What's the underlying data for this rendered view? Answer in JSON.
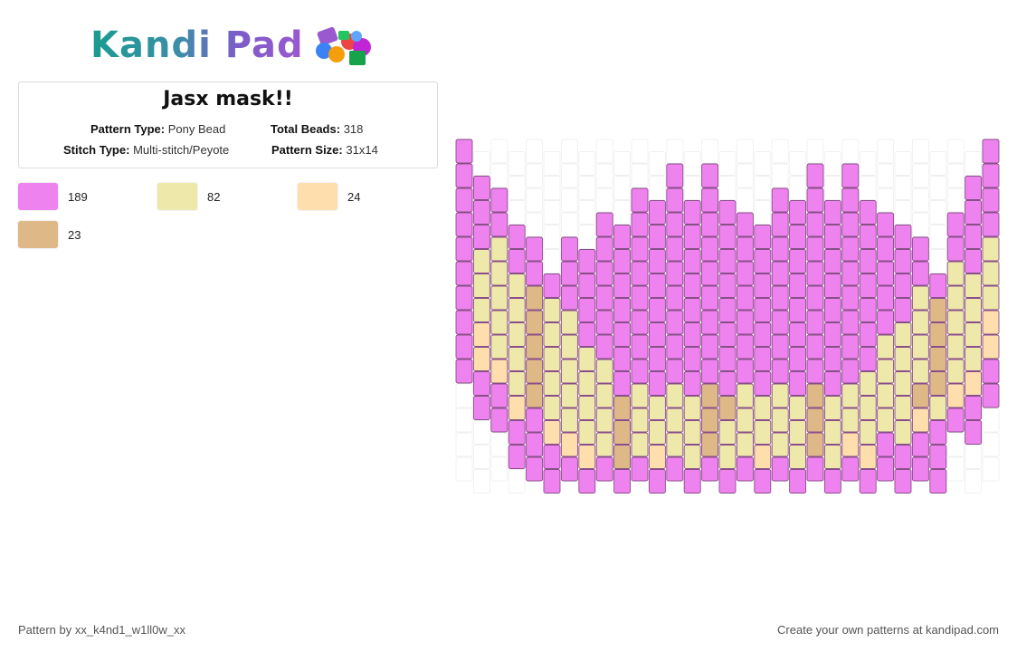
{
  "brand": {
    "name": "Kandi Pad",
    "gradient": [
      "#1a9b8f",
      "#9b59d0"
    ]
  },
  "pattern": {
    "title": "Jasx mask!!",
    "fields": {
      "pattern_type_label": "Pattern Type:",
      "pattern_type": "Pony Bead",
      "total_beads_label": "Total Beads:",
      "total_beads": "318",
      "stitch_type_label": "Stitch Type:",
      "stitch_type": "Multi-stitch/Peyote",
      "pattern_size_label": "Pattern Size:",
      "pattern_size": "31x14"
    }
  },
  "palette": [
    {
      "key": "P",
      "color": "#ee82ee",
      "count": "189"
    },
    {
      "key": "Y",
      "color": "#eee8aa",
      "count": "82"
    },
    {
      "key": "O",
      "color": "#ffdead",
      "count": "24"
    },
    {
      "key": "T",
      "color": "#deb887",
      "count": "23"
    }
  ],
  "grid": {
    "columns": 31,
    "rows": 14,
    "empty_color": "#ffffff",
    "cells": [
      "P.............................P",
      "PP..........P.P.....P.P......PP",
      "PPP.......PPPPPP..PPPPPP.....PPP",
      "PPPP....PPPPPPPPPPPPPPPPPP..PPPP",
      "PYYPP.PPPPPPPPPPPPPPPPPPPPP.PPYYP",
      "PYYYPPPPPPPPPPPPPPPPPPPPPPPPYYYP",
      "PYYYTYPPPPPPPPPPPPPPPPPPPPYTYYYP",
      "POYYTYYPPPPPPPPPPPPPPPPPPYYTYYOP",
      "POYYTYYYPPPPPPPPPPPPPPPPYYYTYYOP",
      "PPOYTYYYYPPPPPPPPPPPPPPYYYYTYOPP",
      ".PPOTYYYYTYYYYTTYYYYTYYYYYTYOPP.",
      "..PPPOYYYTYYYYTYYYYYTYYYYYOPPP..",
      "...PPPOOYTYOYYTYYOYYTYOOPPPP....",
      "....PPPPPPPPPPPPPPPPPPPPPPPP...."
    ]
  },
  "footer": {
    "credit": "Pattern by xx_k4nd1_w1ll0w_xx",
    "cta": "Create your own patterns at kandipad.com"
  }
}
